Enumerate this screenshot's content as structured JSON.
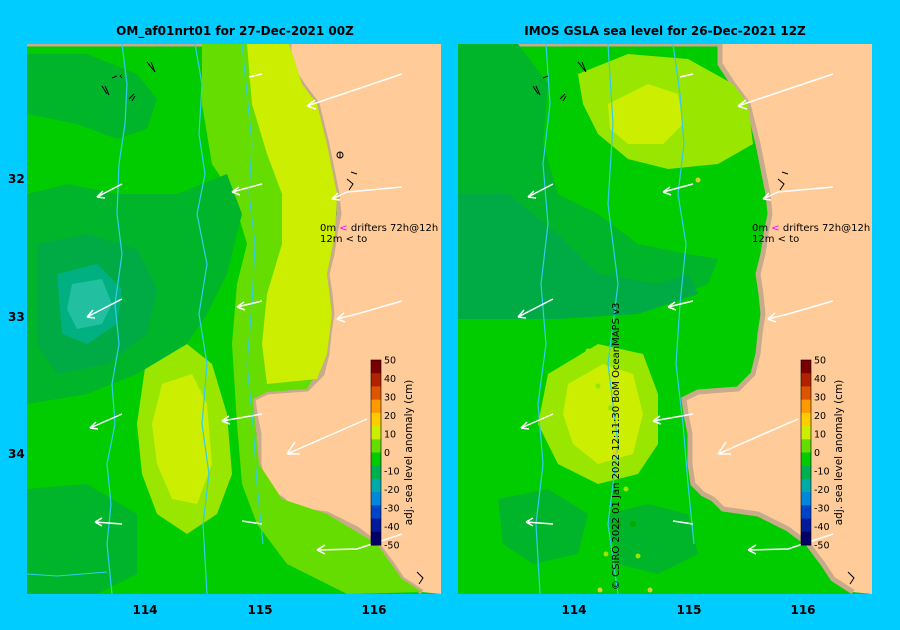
{
  "panels": [
    {
      "title": "OM_af01nrt01 for 27-Dec-2021 00Z",
      "legend": {
        "row1_depth": "0m",
        "row1_text": "drifters 72h@12h",
        "row2_depth": "12m",
        "row2_text": "to"
      }
    },
    {
      "title": "IMOS GSLA sea level  for 26-Dec-2021 12Z",
      "legend": {
        "row1_depth": "0m",
        "row1_text": "drifters 72h@12h",
        "row2_depth": "12m",
        "row2_text": "to"
      }
    }
  ],
  "lat_ticks": [
    "32",
    "33",
    "34"
  ],
  "lon_ticks": [
    "114",
    "115",
    "116"
  ],
  "colorbar": {
    "label": "adj. sea level anomaly (cm)",
    "ticks": [
      "50",
      "40",
      "30",
      "20",
      "10",
      "0",
      "-10",
      "-20",
      "-30",
      "-40",
      "-50"
    ],
    "range": [
      -50,
      50
    ]
  },
  "credit": "© CSIRO 2022   01 Jan 2022 12:11:30 BoM OceanMAPS v3",
  "colors": {
    "background": "#00ccff",
    "land": "#ffcc99",
    "coast": "#c8ab8a",
    "current": "#ffffff"
  }
}
